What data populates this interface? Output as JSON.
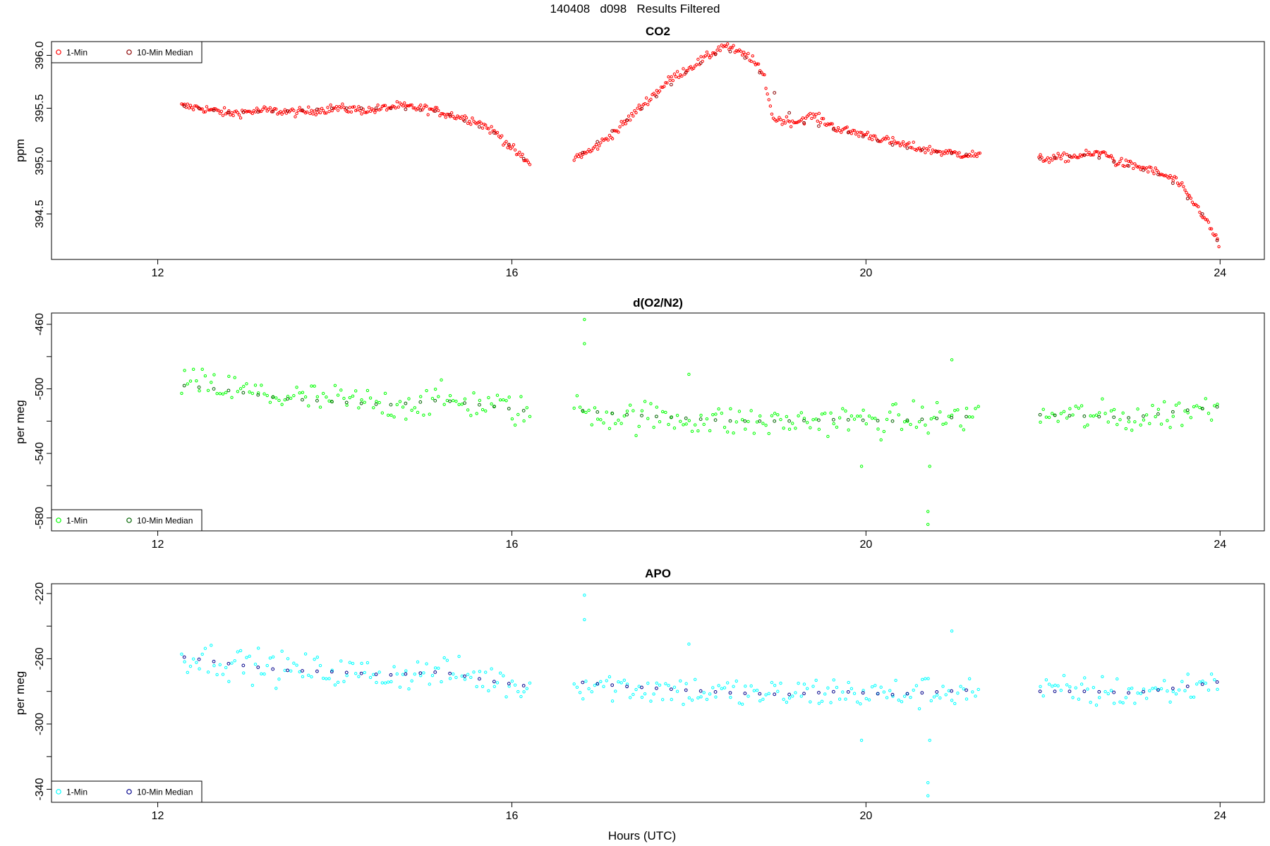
{
  "figure": {
    "title": "140408   d098   Results Filtered",
    "xlabel": "Hours (UTC)"
  },
  "chart_data": [
    {
      "type": "scatter",
      "title": "CO2",
      "xlabel": "",
      "ylabel": "ppm",
      "xlim": [
        10.8,
        24.5
      ],
      "ylim": [
        394.07,
        396.13
      ],
      "xticks": [
        12,
        16,
        20,
        24
      ],
      "yticks": [
        394.5,
        395.0,
        395.5,
        396.0
      ],
      "ytick_labels": [
        "394.5",
        "395.0",
        "395.5",
        "396.0"
      ],
      "yminor_ticks": [],
      "legend": {
        "position": "top-left",
        "entries": [
          {
            "label": "1-Min",
            "color": "#ff0000"
          },
          {
            "label": "10-Min Median",
            "color": "#8b0000"
          }
        ]
      },
      "series": [
        {
          "name": "1-Min",
          "color": "#ff0000",
          "noise": 0.02,
          "gap_after": [
            16.22,
            21.3
          ],
          "x": [
            12.27,
            12.5,
            12.8,
            13.2,
            13.6,
            14.0,
            14.4,
            14.7,
            15.0,
            15.3,
            15.6,
            15.85,
            16.0,
            16.2,
            16.7,
            16.9,
            17.2,
            17.5,
            17.8,
            18.0,
            18.2,
            18.4,
            18.55,
            18.7,
            18.85,
            18.95,
            19.2,
            19.4,
            19.7,
            20.0,
            20.3,
            20.6,
            20.9,
            21.2,
            21.95,
            22.2,
            22.5,
            22.72,
            22.8,
            23.2,
            23.5,
            23.8,
            24.0
          ],
          "y": [
            395.52,
            395.5,
            395.45,
            395.48,
            395.46,
            395.5,
            395.48,
            395.52,
            395.5,
            395.44,
            395.38,
            395.25,
            395.12,
            394.97,
            395.03,
            395.1,
            395.3,
            395.55,
            395.78,
            395.88,
            395.98,
            396.1,
            396.03,
            395.98,
            395.8,
            395.4,
            395.37,
            395.43,
            395.3,
            395.25,
            395.18,
            395.12,
            395.08,
            395.06,
            395.02,
            395.03,
            395.06,
            395.08,
            395.0,
            394.92,
            394.82,
            394.5,
            394.2
          ]
        },
        {
          "name": "10-Min Median",
          "color": "#8b0000",
          "noise": 0.0,
          "gap_after": [
            16.22,
            21.3
          ],
          "x": [
            12.3,
            12.8,
            13.4,
            14.0,
            14.6,
            15.2,
            15.85,
            16.2,
            16.8,
            17.4,
            18.0,
            18.4,
            18.7,
            19.2,
            19.8,
            20.4,
            21.0,
            21.95,
            22.5,
            22.9,
            23.4,
            23.8,
            24.0
          ],
          "y": [
            395.52,
            395.46,
            395.47,
            395.5,
            395.5,
            395.47,
            395.25,
            394.97,
            395.08,
            395.45,
            395.86,
            396.06,
            395.95,
            395.38,
            395.27,
            395.13,
            395.07,
            395.02,
            395.06,
            394.97,
            394.85,
            394.5,
            394.2
          ]
        }
      ]
    },
    {
      "type": "scatter",
      "title": "d(O2/N2)",
      "xlabel": "",
      "ylabel": "per meg",
      "xlim": [
        10.8,
        24.5
      ],
      "ylim": [
        -588,
        -453
      ],
      "xticks": [
        12,
        16,
        20,
        24
      ],
      "yticks": [
        -580,
        -540,
        -500,
        -460
      ],
      "ytick_labels": [
        "-580",
        "-540",
        "-500",
        "-460"
      ],
      "yminor_ticks": [
        -560,
        -520,
        -480
      ],
      "legend": {
        "position": "bottom-left",
        "entries": [
          {
            "label": "1-Min",
            "color": "#00ff00"
          },
          {
            "label": "10-Min Median",
            "color": "#006400"
          }
        ]
      },
      "series": [
        {
          "name": "1-Min",
          "color": "#00ff00",
          "noise": 5,
          "gap_after": [
            16.22,
            21.3
          ],
          "x": [
            12.27,
            12.8,
            13.4,
            14.0,
            14.6,
            15.2,
            15.8,
            16.2,
            16.7,
            17.2,
            17.8,
            18.4,
            19.0,
            19.6,
            20.2,
            20.8,
            21.2,
            21.95,
            22.5,
            23.0,
            23.5,
            24.0
          ],
          "y": [
            -496,
            -500,
            -505,
            -507,
            -510,
            -507,
            -510,
            -515,
            -512,
            -517,
            -518,
            -520,
            -521,
            -519,
            -520,
            -518,
            -517,
            -516,
            -517,
            -518,
            -515,
            -510
          ],
          "outliers": [
            [
              16.82,
              -457
            ],
            [
              16.82,
              -472
            ],
            [
              18.0,
              -491
            ],
            [
              20.7,
              -584
            ],
            [
              20.7,
              -576
            ],
            [
              20.72,
              -548
            ],
            [
              20.97,
              -482
            ],
            [
              19.95,
              -548
            ]
          ]
        },
        {
          "name": "10-Min Median",
          "color": "#006400",
          "noise": 0,
          "gap_after": [
            16.22,
            21.3
          ],
          "x": [
            12.3,
            12.8,
            13.4,
            14.0,
            14.6,
            15.2,
            15.8,
            16.2,
            16.7,
            17.3,
            17.9,
            18.5,
            19.1,
            19.7,
            20.3,
            20.9,
            21.2,
            21.95,
            22.5,
            23.0,
            23.5,
            24.0
          ],
          "y": [
            -498,
            -501,
            -506,
            -508,
            -510,
            -507,
            -511,
            -514,
            -513,
            -516,
            -518,
            -520,
            -520,
            -519,
            -520,
            -518,
            -517,
            -516,
            -517,
            -518,
            -514,
            -511
          ]
        }
      ]
    },
    {
      "type": "scatter",
      "title": "APO",
      "xlabel": "Hours (UTC)",
      "ylabel": "per meg",
      "xlim": [
        10.8,
        24.5
      ],
      "ylim": [
        -348,
        -214
      ],
      "xticks": [
        12,
        16,
        20,
        24
      ],
      "yticks": [
        -340,
        -300,
        -260,
        -220
      ],
      "ytick_labels": [
        "-340",
        "-300",
        "-260",
        "-220"
      ],
      "yminor_ticks": [
        -320,
        -280,
        -240
      ],
      "legend": {
        "position": "bottom-left",
        "entries": [
          {
            "label": "1-Min",
            "color": "#00ffff"
          },
          {
            "label": "10-Min Median",
            "color": "#00008b"
          }
        ]
      },
      "series": [
        {
          "name": "1-Min",
          "color": "#00ffff",
          "noise": 5,
          "gap_after": [
            16.22,
            21.3
          ],
          "x": [
            12.27,
            12.8,
            13.4,
            14.0,
            14.6,
            15.2,
            15.8,
            16.2,
            16.7,
            17.2,
            17.8,
            18.4,
            19.0,
            19.6,
            20.2,
            20.8,
            21.2,
            21.95,
            22.5,
            23.0,
            23.5,
            24.0
          ],
          "y": [
            -258,
            -262,
            -266,
            -268,
            -270,
            -268,
            -273,
            -278,
            -274,
            -277,
            -279,
            -281,
            -282,
            -280,
            -282,
            -280,
            -279,
            -280,
            -280,
            -281,
            -279,
            -273
          ],
          "outliers": [
            [
              16.82,
              -221
            ],
            [
              16.82,
              -236
            ],
            [
              18.0,
              -251
            ],
            [
              20.7,
              -344
            ],
            [
              20.7,
              -336
            ],
            [
              20.72,
              -310
            ],
            [
              20.97,
              -243
            ],
            [
              19.95,
              -310
            ]
          ]
        },
        {
          "name": "10-Min Median",
          "color": "#00008b",
          "noise": 0,
          "gap_after": [
            16.22,
            21.3
          ],
          "x": [
            12.3,
            12.8,
            13.4,
            14.0,
            14.6,
            15.2,
            15.8,
            16.2,
            16.7,
            17.3,
            17.9,
            18.5,
            19.1,
            19.7,
            20.3,
            20.9,
            21.2,
            21.95,
            22.5,
            23.0,
            23.5,
            24.0
          ],
          "y": [
            -259,
            -263,
            -267,
            -268,
            -270,
            -268,
            -274,
            -277,
            -274,
            -277,
            -279,
            -281,
            -282,
            -280,
            -282,
            -280,
            -279,
            -280,
            -280,
            -281,
            -278,
            -274
          ]
        }
      ]
    }
  ]
}
